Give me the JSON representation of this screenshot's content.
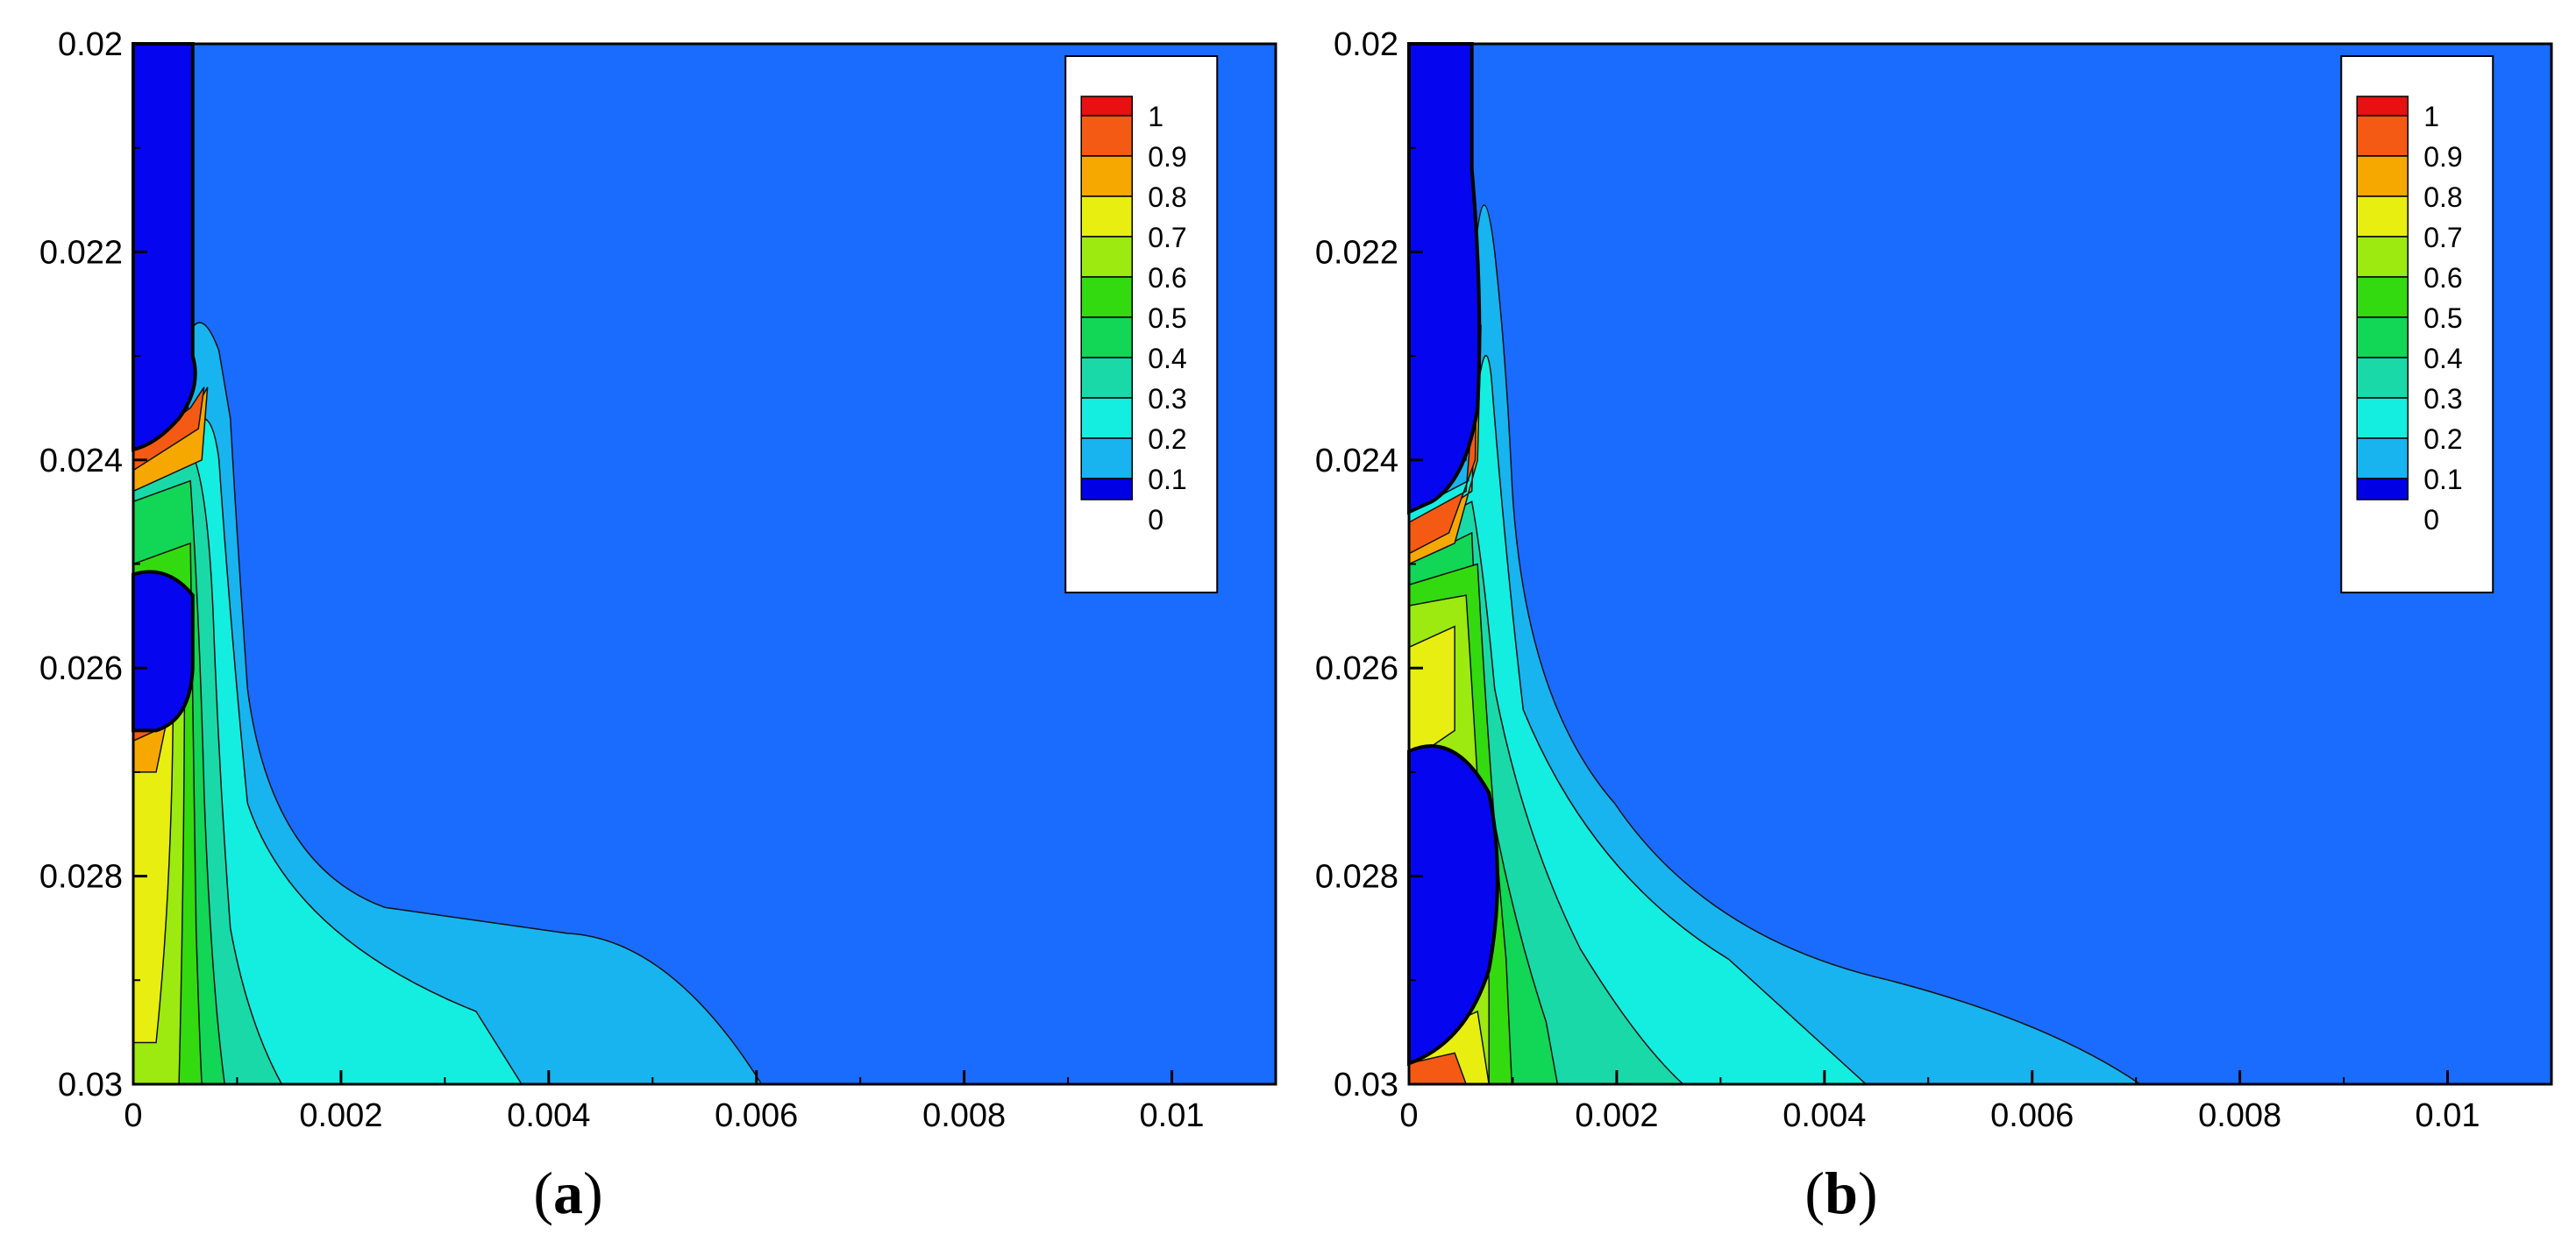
{
  "chart_data": [
    {
      "type": "heatmap",
      "panel_label": "a",
      "x_ticks": [
        "0",
        "0.002",
        "0.004",
        "0.006",
        "0.008",
        "0.01"
      ],
      "x_tick_values": [
        0,
        0.002,
        0.004,
        0.006,
        0.008,
        0.01
      ],
      "y_ticks": [
        "0.02",
        "0.022",
        "0.024",
        "0.026",
        "0.028",
        "0.03"
      ],
      "y_tick_values": [
        0.02,
        0.022,
        0.024,
        0.026,
        0.028,
        0.03
      ],
      "xlim": [
        0,
        0.011
      ],
      "ylim_top_to_bottom": [
        0.02,
        0.03
      ],
      "legend": {
        "placement": "top-right",
        "labels": [
          "1",
          "0.9",
          "0.8",
          "0.7",
          "0.6",
          "0.5",
          "0.4",
          "0.3",
          "0.2",
          "0.1",
          "0"
        ],
        "levels": [
          1,
          0.9,
          0.8,
          0.7,
          0.6,
          0.5,
          0.4,
          0.3,
          0.2,
          0.1,
          0
        ]
      },
      "contour_extent_along_bottom_x": {
        "0.3": 0.0014,
        "0.2": 0.0036,
        "0.1": 0.006
      },
      "plume_top_y": 0.0225
    },
    {
      "type": "heatmap",
      "panel_label": "b",
      "x_ticks": [
        "0",
        "0.002",
        "0.004",
        "0.006",
        "0.008",
        "0.01"
      ],
      "x_tick_values": [
        0,
        0.002,
        0.004,
        0.006,
        0.008,
        0.01
      ],
      "y_ticks": [
        "0.02",
        "0.022",
        "0.024",
        "0.026",
        "0.028",
        "0.03"
      ],
      "y_tick_values": [
        0.02,
        0.022,
        0.024,
        0.026,
        0.028,
        0.03
      ],
      "xlim": [
        0,
        0.011
      ],
      "ylim_top_to_bottom": [
        0.02,
        0.03
      ],
      "legend": {
        "placement": "top-right",
        "labels": [
          "1",
          "0.9",
          "0.8",
          "0.7",
          "0.6",
          "0.5",
          "0.4",
          "0.3",
          "0.2",
          "0.1",
          "0"
        ],
        "levels": [
          1,
          0.9,
          0.8,
          0.7,
          0.6,
          0.5,
          0.4,
          0.3,
          0.2,
          0.1,
          0
        ]
      },
      "contour_extent_along_bottom_x": {
        "0.3": 0.0026,
        "0.2": 0.0043,
        "0.1": 0.0071
      },
      "plume_top_y": 0.0213
    }
  ],
  "colors": {
    "background_field": "#1a6cff",
    "bubble": "#0505f0",
    "levels": {
      "1": "#e81010",
      "0.9": "#f55a14",
      "0.8": "#f7a800",
      "0.7": "#e8ef10",
      "0.6": "#9cea10",
      "0.5": "#34da10",
      "0.4": "#12d655",
      "0.3": "#1ad9a8",
      "0.2": "#14eee0",
      "0.1": "#18b4ef",
      "0": "#0000e6"
    }
  },
  "captions": {
    "a_open": "(",
    "a_letter": "a",
    "a_close": ")",
    "b_open": "(",
    "b_letter": "b",
    "b_close": ")"
  }
}
